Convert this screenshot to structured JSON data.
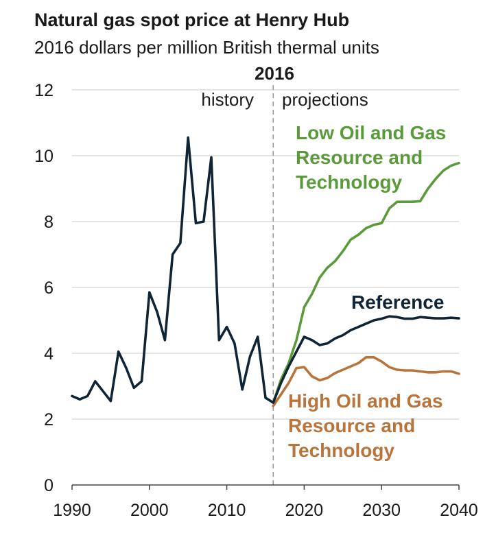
{
  "title": "Natural gas spot price at Henry Hub",
  "subtitle": "2016 dollars per million British thermal units",
  "chart_data": {
    "type": "line",
    "title": "Natural gas spot price at Henry Hub",
    "subtitle": "2016 dollars per million British thermal units",
    "xlim": [
      1990,
      2040
    ],
    "ylim": [
      0,
      12
    ],
    "x_ticks": [
      "1990",
      "2000",
      "2010",
      "2020",
      "2030",
      "2040"
    ],
    "y_ticks": [
      "0",
      "2",
      "4",
      "6",
      "8",
      "10",
      "12"
    ],
    "grid": "horizontal",
    "divider": {
      "x": 2016,
      "label": "2016",
      "left_label": "history",
      "right_label": "projections"
    },
    "colors": {
      "history": "#0f2435",
      "reference": "#0f2435",
      "low": "#5a9a3a",
      "high": "#b8743a",
      "grid": "#d4d4d4",
      "divider": "#999999"
    },
    "series": [
      {
        "key": "history",
        "x": [
          1990,
          1991,
          1992,
          1993,
          1994,
          1995,
          1996,
          1997,
          1998,
          1999,
          2000,
          2001,
          2002,
          2003,
          2004,
          2005,
          2006,
          2007,
          2008,
          2009,
          2010,
          2011,
          2012,
          2013,
          2014,
          2015,
          2016
        ],
        "values": [
          2.7,
          2.6,
          2.7,
          3.15,
          2.85,
          2.55,
          4.05,
          3.55,
          2.95,
          3.15,
          5.85,
          5.25,
          4.4,
          7.0,
          7.35,
          10.55,
          7.95,
          8.0,
          9.95,
          4.4,
          4.8,
          4.3,
          2.9,
          3.9,
          4.5,
          2.65,
          2.5
        ]
      },
      {
        "key": "reference",
        "name": "Reference",
        "x": [
          2016,
          2017,
          2018,
          2019,
          2020,
          2021,
          2022,
          2023,
          2024,
          2025,
          2026,
          2027,
          2028,
          2029,
          2030,
          2031,
          2032,
          2033,
          2034,
          2035,
          2036,
          2037,
          2038,
          2039,
          2040
        ],
        "values": [
          2.5,
          3.1,
          3.6,
          4.05,
          4.5,
          4.4,
          4.25,
          4.3,
          4.45,
          4.55,
          4.7,
          4.8,
          4.9,
          5.0,
          5.05,
          5.12,
          5.1,
          5.05,
          5.05,
          5.1,
          5.08,
          5.06,
          5.06,
          5.08,
          5.06
        ]
      },
      {
        "key": "low",
        "name": "Low Oil and Gas Resource and Technology",
        "x": [
          2016,
          2017,
          2018,
          2019,
          2020,
          2021,
          2022,
          2023,
          2024,
          2025,
          2026,
          2027,
          2028,
          2029,
          2030,
          2031,
          2032,
          2033,
          2034,
          2035,
          2036,
          2037,
          2038,
          2039,
          2040
        ],
        "values": [
          2.5,
          3.2,
          3.7,
          4.4,
          5.4,
          5.8,
          6.3,
          6.6,
          6.8,
          7.1,
          7.45,
          7.6,
          7.8,
          7.9,
          7.95,
          8.4,
          8.6,
          8.6,
          8.6,
          8.62,
          9.0,
          9.3,
          9.55,
          9.7,
          9.78
        ]
      },
      {
        "key": "high",
        "name": "High Oil and Gas Resource and Technology",
        "x": [
          2016,
          2017,
          2018,
          2019,
          2020,
          2021,
          2022,
          2023,
          2024,
          2025,
          2026,
          2027,
          2028,
          2029,
          2030,
          2031,
          2032,
          2033,
          2034,
          2035,
          2036,
          2037,
          2038,
          2039,
          2040
        ],
        "values": [
          2.4,
          2.75,
          3.1,
          3.55,
          3.58,
          3.3,
          3.18,
          3.25,
          3.4,
          3.5,
          3.6,
          3.7,
          3.88,
          3.88,
          3.75,
          3.58,
          3.5,
          3.48,
          3.48,
          3.45,
          3.42,
          3.42,
          3.45,
          3.45,
          3.38
        ]
      }
    ]
  }
}
